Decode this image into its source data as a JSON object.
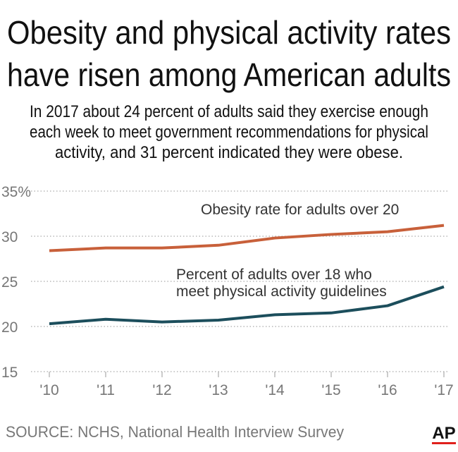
{
  "chart_data": {
    "type": "line",
    "title": [
      "Obesity and physical activity rates",
      "have risen among American adults"
    ],
    "subtitle": [
      "In 2017 about 24 percent of adults said they exercise enough",
      "each week to meet government recommendations for physical",
      "activity, and 31 percent indicated they were obese."
    ],
    "categories": [
      "'10",
      "'11",
      "'12",
      "'13",
      "'14",
      "'15",
      "'16",
      "'17"
    ],
    "series": [
      {
        "name": "Obesity rate for adults over 20",
        "color": "#c8603a",
        "values": [
          28.4,
          28.7,
          28.7,
          29.0,
          29.8,
          30.2,
          30.5,
          31.2
        ]
      },
      {
        "name": "Percent of adults over 18 who meet physical activity guidelines",
        "color": "#1c4e5c",
        "values": [
          20.3,
          20.8,
          20.5,
          20.7,
          21.3,
          21.5,
          22.3,
          24.4
        ]
      }
    ],
    "ylim": [
      15,
      35
    ],
    "yticks": [
      15,
      20,
      25,
      30,
      {
        "value": 35,
        "label": "35%"
      }
    ],
    "grid": true,
    "source": "SOURCE: NCHS, National Health Interview Survey",
    "logo": "AP"
  }
}
